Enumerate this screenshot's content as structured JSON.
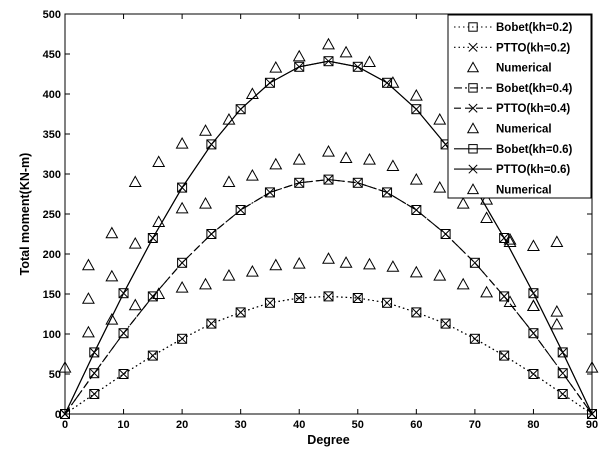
{
  "chart_data": {
    "type": "line",
    "xlabel": "Degree",
    "ylabel": "Total moment(KN-m)",
    "xlim": [
      0,
      90
    ],
    "ylim": [
      0,
      500
    ],
    "xticks": [
      0,
      10,
      20,
      30,
      40,
      50,
      60,
      70,
      80,
      90
    ],
    "yticks": [
      0,
      50,
      100,
      150,
      200,
      250,
      300,
      350,
      400,
      450,
      500
    ],
    "grid": false,
    "legend_position": "top-right",
    "series": [
      {
        "name": "Bobet(kh=0.2)",
        "style": "dotted",
        "marker": "square",
        "x": [
          0,
          5,
          10,
          15,
          20,
          25,
          30,
          35,
          40,
          45,
          50,
          55,
          60,
          65,
          70,
          75,
          80,
          85,
          90
        ],
        "y": [
          0,
          25,
          50,
          73,
          94,
          113,
          127,
          139,
          145,
          147,
          145,
          139,
          127,
          113,
          94,
          73,
          50,
          25,
          0
        ]
      },
      {
        "name": "PTTO(kh=0.2)",
        "style": "dotted",
        "marker": "x",
        "x": [
          0,
          5,
          10,
          15,
          20,
          25,
          30,
          35,
          40,
          45,
          50,
          55,
          60,
          65,
          70,
          75,
          80,
          85,
          90
        ],
        "y": [
          0,
          25,
          50,
          73,
          94,
          113,
          127,
          139,
          145,
          147,
          145,
          139,
          127,
          113,
          94,
          73,
          50,
          25,
          0
        ]
      },
      {
        "name": "Numerical",
        "style": "none",
        "marker": "triangle",
        "x": [
          4,
          8,
          12,
          16,
          20,
          24,
          28,
          32,
          36,
          40,
          45,
          48,
          52,
          56,
          60,
          64,
          68,
          72,
          76,
          80,
          84
        ],
        "y": [
          102,
          118,
          136,
          150,
          158,
          162,
          173,
          178,
          186,
          188,
          194,
          189,
          187,
          184,
          177,
          173,
          162,
          152,
          140,
          135,
          112
        ]
      },
      {
        "name": "Bobet(kh=0.4)",
        "style": "dash-dot",
        "marker": "square",
        "x": [
          0,
          5,
          10,
          15,
          20,
          25,
          30,
          35,
          40,
          45,
          50,
          55,
          60,
          65,
          70,
          75,
          80,
          85,
          90
        ],
        "y": [
          0,
          51,
          101,
          147,
          189,
          225,
          255,
          277,
          289,
          293,
          289,
          277,
          255,
          225,
          189,
          147,
          101,
          51,
          0
        ]
      },
      {
        "name": "PTTO(kh=0.4)",
        "style": "dashed",
        "marker": "x",
        "x": [
          0,
          5,
          10,
          15,
          20,
          25,
          30,
          35,
          40,
          45,
          50,
          55,
          60,
          65,
          70,
          75,
          80,
          85,
          90
        ],
        "y": [
          0,
          51,
          101,
          147,
          189,
          225,
          255,
          277,
          289,
          293,
          289,
          277,
          255,
          225,
          189,
          147,
          101,
          51,
          0
        ]
      },
      {
        "name": "Numerical",
        "style": "none",
        "marker": "triangle",
        "x": [
          4,
          8,
          12,
          16,
          20,
          24,
          28,
          32,
          36,
          40,
          45,
          48,
          52,
          56,
          60,
          64,
          68,
          72,
          76,
          80,
          84
        ],
        "y": [
          144,
          172,
          213,
          240,
          257,
          263,
          290,
          298,
          312,
          318,
          328,
          320,
          318,
          310,
          293,
          283,
          263,
          245,
          215,
          210,
          128
        ]
      },
      {
        "name": "Bobet(kh=0.6)",
        "style": "solid",
        "marker": "square",
        "x": [
          0,
          5,
          10,
          15,
          20,
          25,
          30,
          35,
          40,
          45,
          50,
          55,
          60,
          65,
          70,
          75,
          80,
          85,
          90
        ],
        "y": [
          0,
          77,
          151,
          220,
          283,
          337,
          381,
          414,
          434,
          441,
          434,
          414,
          381,
          337,
          283,
          220,
          151,
          77,
          0
        ]
      },
      {
        "name": "PTTO(kh=0.6)",
        "style": "solid",
        "marker": "x",
        "x": [
          0,
          5,
          10,
          15,
          20,
          25,
          30,
          35,
          40,
          45,
          50,
          55,
          60,
          65,
          70,
          75,
          80,
          85,
          90
        ],
        "y": [
          0,
          77,
          151,
          220,
          283,
          337,
          381,
          414,
          434,
          441,
          434,
          414,
          381,
          337,
          283,
          220,
          151,
          77,
          0
        ]
      },
      {
        "name": "Numerical",
        "style": "none",
        "marker": "triangle",
        "x": [
          0,
          4,
          8,
          12,
          16,
          20,
          24,
          28,
          32,
          36,
          40,
          45,
          48,
          52,
          56,
          60,
          64,
          68,
          72,
          76,
          80,
          84,
          90
        ],
        "y": [
          58,
          186,
          226,
          290,
          315,
          338,
          354,
          368,
          400,
          433,
          447,
          462,
          452,
          440,
          414,
          398,
          368,
          332,
          268,
          218,
          135,
          215,
          58
        ]
      }
    ]
  }
}
